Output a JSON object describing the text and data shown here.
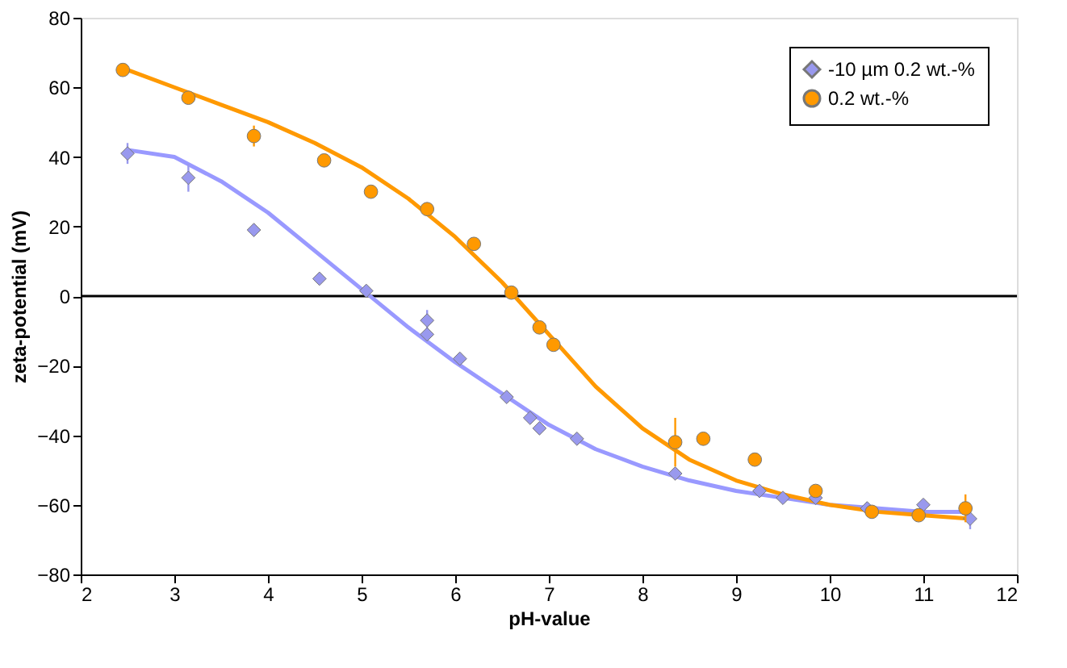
{
  "chart_data": {
    "type": "scatter",
    "xlabel": "pH-value",
    "ylabel": "zeta-potential (mV)",
    "xlim": [
      2,
      12
    ],
    "xticks": [
      2,
      3,
      4,
      5,
      6,
      7,
      8,
      9,
      10,
      11,
      12
    ],
    "ylim": [
      -80,
      80
    ],
    "yticks": [
      -80,
      -60,
      -40,
      -20,
      0,
      20,
      40,
      60,
      80
    ],
    "grid": false,
    "legend": "top right",
    "ref_lines": [
      {
        "axis": "y",
        "value": 0,
        "label": null,
        "color": "#000000"
      }
    ],
    "series": [
      {
        "type": "line",
        "color": "#9999ff",
        "x": [
          2.5,
          3,
          3.5,
          4,
          4.5,
          5,
          5.5,
          6,
          6.5,
          7,
          7.5,
          8,
          8.5,
          9,
          9.5,
          10,
          10.5,
          11,
          11.5
        ],
        "values": [
          42,
          40,
          33,
          24,
          13,
          2,
          -9,
          -19,
          -28,
          -37,
          -44,
          -49,
          -53,
          -56,
          -58,
          -60,
          -61,
          -62,
          -62
        ]
      },
      {
        "type": "line",
        "color": "#ff9900",
        "x": [
          2.5,
          3,
          3.5,
          4,
          4.5,
          5,
          5.5,
          6,
          6.5,
          7,
          7.5,
          8,
          8.5,
          9,
          9.5,
          10,
          10.5,
          11,
          11.5
        ],
        "values": [
          65,
          60,
          55,
          50,
          44,
          37,
          28,
          17,
          4,
          -11,
          -26,
          -38,
          -47,
          -53,
          -57,
          -60,
          -62,
          -63,
          -64
        ]
      },
      {
        "name": "-10 µm 0.2 wt.-%",
        "color": "#9999ee",
        "marker": "diamond",
        "x": [
          2.5,
          3.15,
          3.85,
          4.55,
          5.05,
          5.7,
          5.7,
          6.05,
          6.55,
          6.8,
          6.9,
          7.3,
          8.35,
          9.25,
          9.5,
          9.85,
          10.4,
          11,
          11.5
        ],
        "values": [
          41,
          34,
          19,
          5,
          1.5,
          -7,
          -11,
          -18,
          -29,
          -35,
          -38,
          -41,
          -51,
          -56,
          -58,
          -58,
          -61,
          -60,
          -64
        ],
        "errors": [
          3,
          4,
          null,
          null,
          null,
          3,
          null,
          null,
          null,
          null,
          null,
          null,
          null,
          null,
          null,
          null,
          null,
          null,
          3
        ]
      },
      {
        "name": "0.2 wt.-%",
        "color": "#ff9900",
        "marker": "circle",
        "x": [
          2.45,
          3.15,
          3.85,
          4.6,
          5.1,
          5.7,
          6.2,
          6.6,
          6.9,
          7.05,
          8.35,
          8.65,
          9.2,
          9.85,
          10.45,
          10.95,
          11.45
        ],
        "values": [
          65,
          57,
          46,
          39,
          30,
          25,
          15,
          1,
          -9,
          -14,
          -42,
          -41,
          -47,
          -56,
          -62,
          -63,
          -61
        ],
        "errors": [
          null,
          null,
          3,
          null,
          null,
          null,
          null,
          null,
          null,
          null,
          7,
          null,
          null,
          null,
          null,
          null,
          4
        ]
      }
    ]
  }
}
